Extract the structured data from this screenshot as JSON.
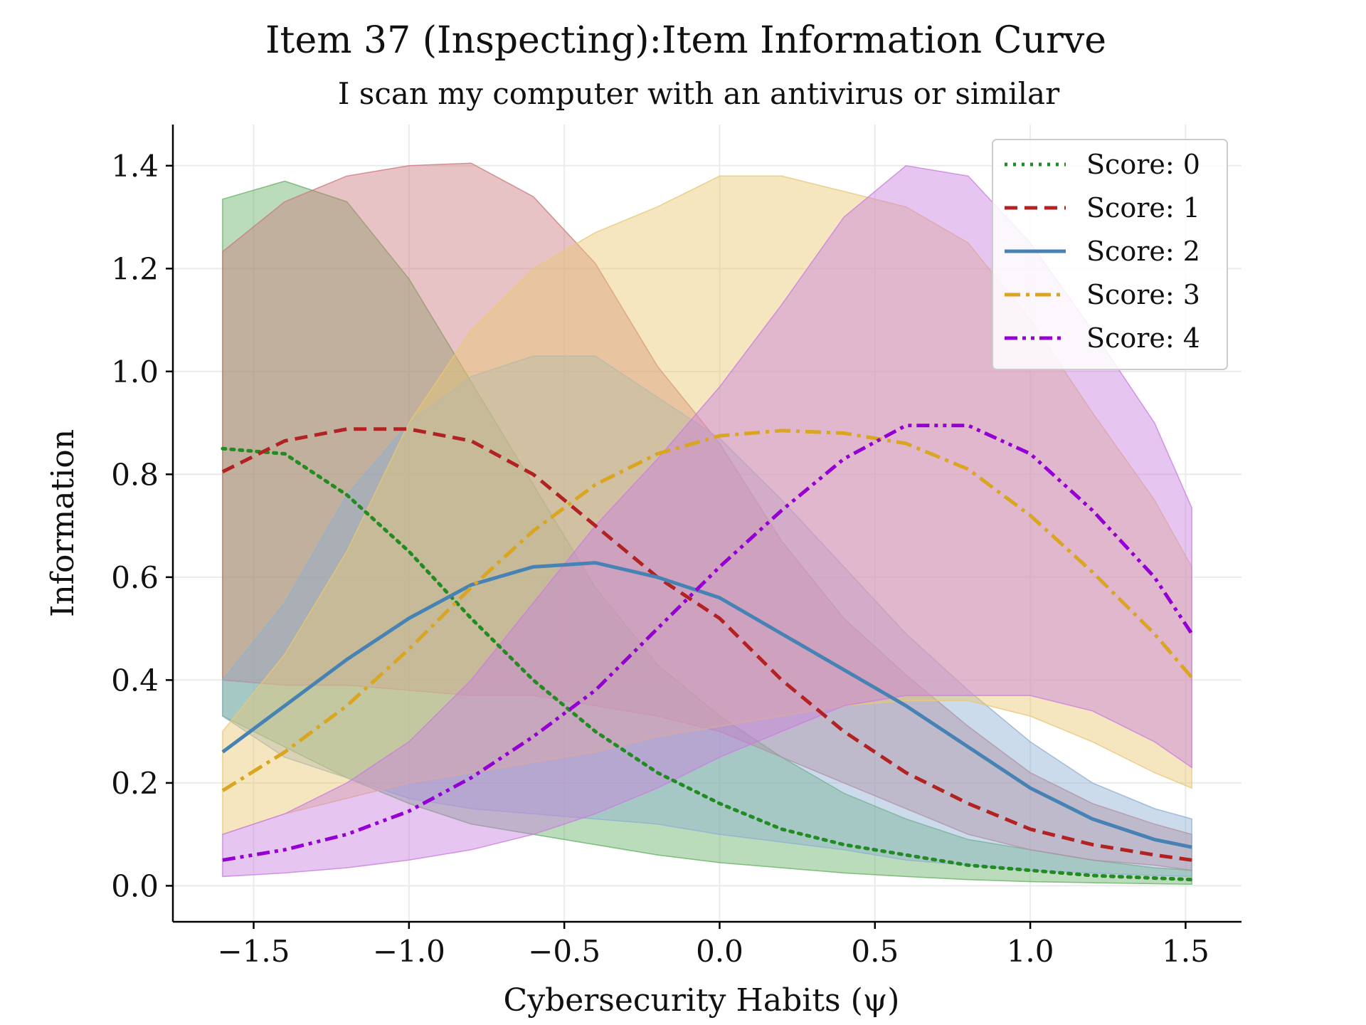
{
  "chart_data": {
    "type": "line",
    "title": "Item 37 (Inspecting):Item Information Curve",
    "subtitle": "I scan my computer with an antivirus or similar",
    "xlabel": "Cybersecurity Habits (ψ)",
    "ylabel": "Information",
    "xlim": [
      -1.76,
      1.68
    ],
    "ylim": [
      -0.07,
      1.48
    ],
    "xticks": [
      -1.5,
      -1.0,
      -0.5,
      0.0,
      0.5,
      1.0,
      1.5
    ],
    "xtick_labels": [
      "−1.5",
      "−1.0",
      "−0.5",
      "0.0",
      "0.5",
      "1.0",
      "1.5"
    ],
    "yticks": [
      0.0,
      0.2,
      0.4,
      0.6,
      0.8,
      1.0,
      1.2,
      1.4
    ],
    "ytick_labels": [
      "0.0",
      "0.2",
      "0.4",
      "0.6",
      "0.8",
      "1.0",
      "1.2",
      "1.4"
    ],
    "grid": true,
    "legend_position": "top-right",
    "x": [
      -1.6,
      -1.4,
      -1.2,
      -1.0,
      -0.8,
      -0.6,
      -0.4,
      -0.2,
      0.0,
      0.2,
      0.4,
      0.6,
      0.8,
      1.0,
      1.2,
      1.4,
      1.52
    ],
    "series": [
      {
        "name": "Score: 0",
        "color": "#228B22",
        "fill": "#66b266",
        "dash": "dotted",
        "values": [
          0.85,
          0.84,
          0.76,
          0.65,
          0.52,
          0.4,
          0.3,
          0.22,
          0.16,
          0.11,
          0.08,
          0.06,
          0.04,
          0.03,
          0.02,
          0.015,
          0.012
        ],
        "upper": [
          1.335,
          1.37,
          1.33,
          1.18,
          0.98,
          0.78,
          0.58,
          0.43,
          0.33,
          0.25,
          0.18,
          0.13,
          0.09,
          0.07,
          0.05,
          0.035,
          0.03
        ],
        "lower": [
          0.33,
          0.27,
          0.21,
          0.16,
          0.12,
          0.1,
          0.08,
          0.06,
          0.045,
          0.035,
          0.025,
          0.018,
          0.012,
          0.008,
          0.006,
          0.004,
          0.003
        ]
      },
      {
        "name": "Score: 1",
        "color": "#B22222",
        "fill": "#cd7a7f",
        "dash": "dashed",
        "values": [
          0.805,
          0.865,
          0.888,
          0.888,
          0.865,
          0.8,
          0.7,
          0.6,
          0.52,
          0.4,
          0.3,
          0.22,
          0.16,
          0.11,
          0.08,
          0.06,
          0.05
        ],
        "upper": [
          1.233,
          1.33,
          1.38,
          1.4,
          1.405,
          1.34,
          1.21,
          1.01,
          0.86,
          0.67,
          0.52,
          0.41,
          0.31,
          0.22,
          0.16,
          0.12,
          0.1
        ],
        "lower": [
          0.4,
          0.39,
          0.39,
          0.38,
          0.37,
          0.37,
          0.35,
          0.33,
          0.3,
          0.25,
          0.2,
          0.15,
          0.1,
          0.07,
          0.05,
          0.04,
          0.03
        ]
      },
      {
        "name": "Score: 2",
        "color": "#4682B4",
        "fill": "#8fb0d2",
        "dash": "solid",
        "values": [
          0.26,
          0.35,
          0.44,
          0.52,
          0.585,
          0.62,
          0.628,
          0.6,
          0.56,
          0.49,
          0.42,
          0.35,
          0.27,
          0.19,
          0.13,
          0.09,
          0.075
        ],
        "upper": [
          0.4,
          0.55,
          0.76,
          0.9,
          0.99,
          1.03,
          1.03,
          0.95,
          0.87,
          0.75,
          0.62,
          0.49,
          0.38,
          0.28,
          0.2,
          0.15,
          0.13
        ],
        "lower": [
          0.33,
          0.25,
          0.21,
          0.17,
          0.15,
          0.14,
          0.13,
          0.12,
          0.1,
          0.085,
          0.07,
          0.05,
          0.04,
          0.03,
          0.025,
          0.02,
          0.018
        ]
      },
      {
        "name": "Score: 3",
        "color": "#DAA520",
        "fill": "#e8c874",
        "dash": "dashdot",
        "values": [
          0.185,
          0.26,
          0.35,
          0.46,
          0.58,
          0.69,
          0.78,
          0.84,
          0.875,
          0.885,
          0.88,
          0.86,
          0.81,
          0.72,
          0.61,
          0.49,
          0.405
        ],
        "upper": [
          0.3,
          0.45,
          0.65,
          0.9,
          1.08,
          1.2,
          1.27,
          1.32,
          1.38,
          1.38,
          1.35,
          1.32,
          1.25,
          1.1,
          0.92,
          0.75,
          0.62
        ],
        "lower": [
          0.1,
          0.14,
          0.17,
          0.2,
          0.22,
          0.24,
          0.26,
          0.29,
          0.31,
          0.33,
          0.35,
          0.36,
          0.36,
          0.33,
          0.28,
          0.22,
          0.19
        ]
      },
      {
        "name": "Score: 4",
        "color": "#9400D3",
        "fill": "#c97ee0",
        "dash": "dashdotdot",
        "values": [
          0.05,
          0.07,
          0.1,
          0.145,
          0.21,
          0.29,
          0.38,
          0.5,
          0.62,
          0.73,
          0.83,
          0.895,
          0.895,
          0.84,
          0.73,
          0.6,
          0.49
        ],
        "upper": [
          0.1,
          0.14,
          0.2,
          0.28,
          0.4,
          0.55,
          0.7,
          0.83,
          0.97,
          1.13,
          1.3,
          1.4,
          1.38,
          1.25,
          1.08,
          0.9,
          0.735
        ],
        "lower": [
          0.018,
          0.025,
          0.035,
          0.05,
          0.07,
          0.1,
          0.14,
          0.19,
          0.25,
          0.3,
          0.35,
          0.37,
          0.37,
          0.37,
          0.34,
          0.28,
          0.23
        ]
      }
    ]
  }
}
